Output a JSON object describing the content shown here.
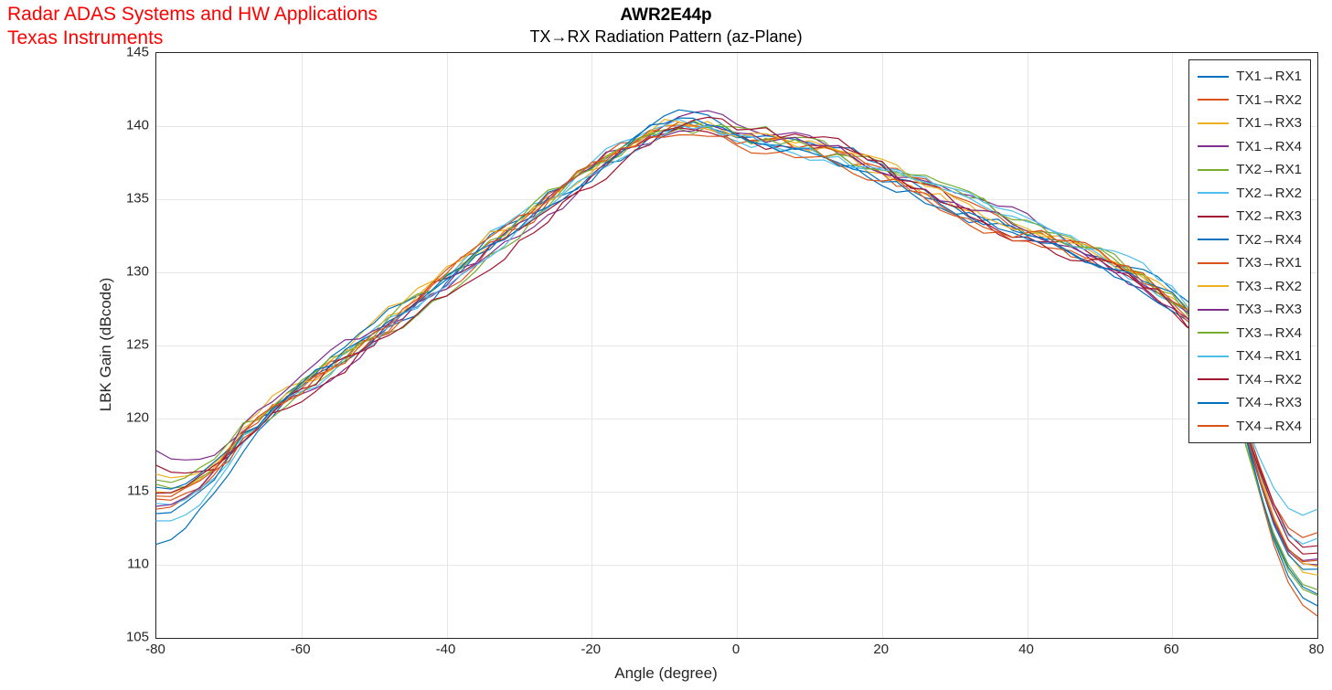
{
  "header": {
    "line1": "Radar ADAS Systems and HW Applications",
    "line2": "Texas Instruments"
  },
  "chart": {
    "type": "line",
    "bold_title": "AWR2E44p",
    "subtitle": "TX→RX Radiation Pattern (az-Plane)",
    "xlabel": "Angle (degree)",
    "ylabel": "LBK Gain (dBcode)",
    "xlim": [
      -80,
      80
    ],
    "ylim": [
      105,
      145
    ],
    "xtick_step": 20,
    "ytick_step": 5,
    "xtick_labels": [
      "-80",
      "-60",
      "-40",
      "-20",
      "0",
      "20",
      "40",
      "60",
      "80"
    ],
    "ytick_labels": [
      "105",
      "110",
      "115",
      "120",
      "125",
      "130",
      "135",
      "140",
      "145"
    ],
    "grid_color": "#e6e6e6",
    "axis_color": "#262626",
    "background_color": "#ffffff",
    "line_width": 1.2,
    "title_fontsize": 19,
    "subtitle_fontsize": 18,
    "label_fontsize": 17,
    "tick_fontsize": 15,
    "legend_fontsize": 15,
    "legend_position": "northeast-inset",
    "x_values": [
      -80,
      -78,
      -76,
      -74,
      -72,
      -70,
      -68,
      -66,
      -64,
      -62,
      -60,
      -58,
      -56,
      -54,
      -52,
      -50,
      -48,
      -46,
      -44,
      -42,
      -40,
      -38,
      -36,
      -34,
      -32,
      -30,
      -28,
      -26,
      -24,
      -22,
      -20,
      -18,
      -16,
      -14,
      -12,
      -10,
      -8,
      -6,
      -4,
      -2,
      0,
      2,
      4,
      6,
      8,
      10,
      12,
      14,
      16,
      18,
      20,
      22,
      24,
      26,
      28,
      30,
      32,
      34,
      36,
      38,
      40,
      42,
      44,
      46,
      48,
      50,
      52,
      54,
      56,
      58,
      60,
      62,
      64,
      66,
      68,
      70,
      72,
      74,
      76,
      78,
      80
    ],
    "base_curve": [
      111.4,
      114.0,
      115.5,
      116.4,
      117.2,
      118.0,
      118.8,
      119.6,
      120.5,
      121.3,
      122.0,
      122.7,
      123.5,
      124.3,
      125.0,
      125.8,
      126.6,
      127.3,
      128.0,
      128.8,
      129.5,
      130.3,
      131.0,
      131.8,
      132.5,
      133.2,
      134.0,
      134.8,
      135.5,
      136.3,
      137.0,
      137.7,
      138.3,
      138.9,
      139.5,
      139.9,
      140.2,
      140.3,
      140.2,
      140.0,
      139.7,
      139.4,
      139.2,
      139.0,
      138.8,
      138.5,
      138.2,
      137.9,
      137.5,
      137.1,
      136.7,
      136.3,
      135.9,
      135.5,
      135.1,
      134.7,
      134.3,
      133.9,
      133.5,
      133.2,
      132.9,
      132.6,
      132.2,
      131.8,
      131.4,
      131.0,
      130.5,
      130.0,
      129.4,
      128.7,
      128.0,
      127.1,
      126.0,
      124.7,
      123.2,
      121.3,
      119.0,
      116.2,
      113.2,
      110.5,
      109.0
    ],
    "series": [
      {
        "label": "TX1→RX1",
        "color": "#0072bd",
        "seed": 11,
        "amp": 0.85,
        "ends": [
          111.4,
          108.0
        ]
      },
      {
        "label": "TX1→RX2",
        "color": "#d95319",
        "seed": 12,
        "amp": 0.9,
        "ends": [
          113.8,
          112.2
        ]
      },
      {
        "label": "TX1→RX3",
        "color": "#edb120",
        "seed": 13,
        "amp": 0.8,
        "ends": [
          115.0,
          109.3
        ]
      },
      {
        "label": "TX1→RX4",
        "color": "#7e2f8e",
        "seed": 14,
        "amp": 0.75,
        "ends": [
          117.8,
          110.0
        ]
      },
      {
        "label": "TX2→RX1",
        "color": "#77ac30",
        "seed": 21,
        "amp": 0.85,
        "ends": [
          115.5,
          108.3
        ]
      },
      {
        "label": "TX2→RX2",
        "color": "#4dbeee",
        "seed": 22,
        "amp": 0.8,
        "ends": [
          114.2,
          113.8
        ]
      },
      {
        "label": "TX2→RX3",
        "color": "#a2142f",
        "seed": 23,
        "amp": 0.9,
        "ends": [
          114.9,
          111.3
        ]
      },
      {
        "label": "TX2→RX4",
        "color": "#0072bd",
        "seed": 24,
        "amp": 0.7,
        "ends": [
          113.5,
          109.7
        ]
      },
      {
        "label": "TX3→RX1",
        "color": "#d95319",
        "seed": 31,
        "amp": 0.95,
        "ends": [
          114.5,
          106.5
        ]
      },
      {
        "label": "TX3→RX2",
        "color": "#edb120",
        "seed": 32,
        "amp": 0.8,
        "ends": [
          116.2,
          109.9
        ]
      },
      {
        "label": "TX3→RX3",
        "color": "#7e2f8e",
        "seed": 33,
        "amp": 0.75,
        "ends": [
          114.0,
          110.4
        ]
      },
      {
        "label": "TX3→RX4",
        "color": "#77ac30",
        "seed": 34,
        "amp": 0.85,
        "ends": [
          115.8,
          107.9
        ]
      },
      {
        "label": "TX4→RX1",
        "color": "#4dbeee",
        "seed": 41,
        "amp": 0.8,
        "ends": [
          113.0,
          111.8
        ]
      },
      {
        "label": "TX4→RX2",
        "color": "#a2142f",
        "seed": 42,
        "amp": 0.95,
        "ends": [
          116.8,
          110.8
        ]
      },
      {
        "label": "TX4→RX3",
        "color": "#0072bd",
        "seed": 43,
        "amp": 0.7,
        "ends": [
          115.3,
          107.2
        ]
      },
      {
        "label": "TX4→RX4",
        "color": "#d95319",
        "seed": 44,
        "amp": 0.85,
        "ends": [
          114.7,
          110.3
        ]
      }
    ]
  }
}
